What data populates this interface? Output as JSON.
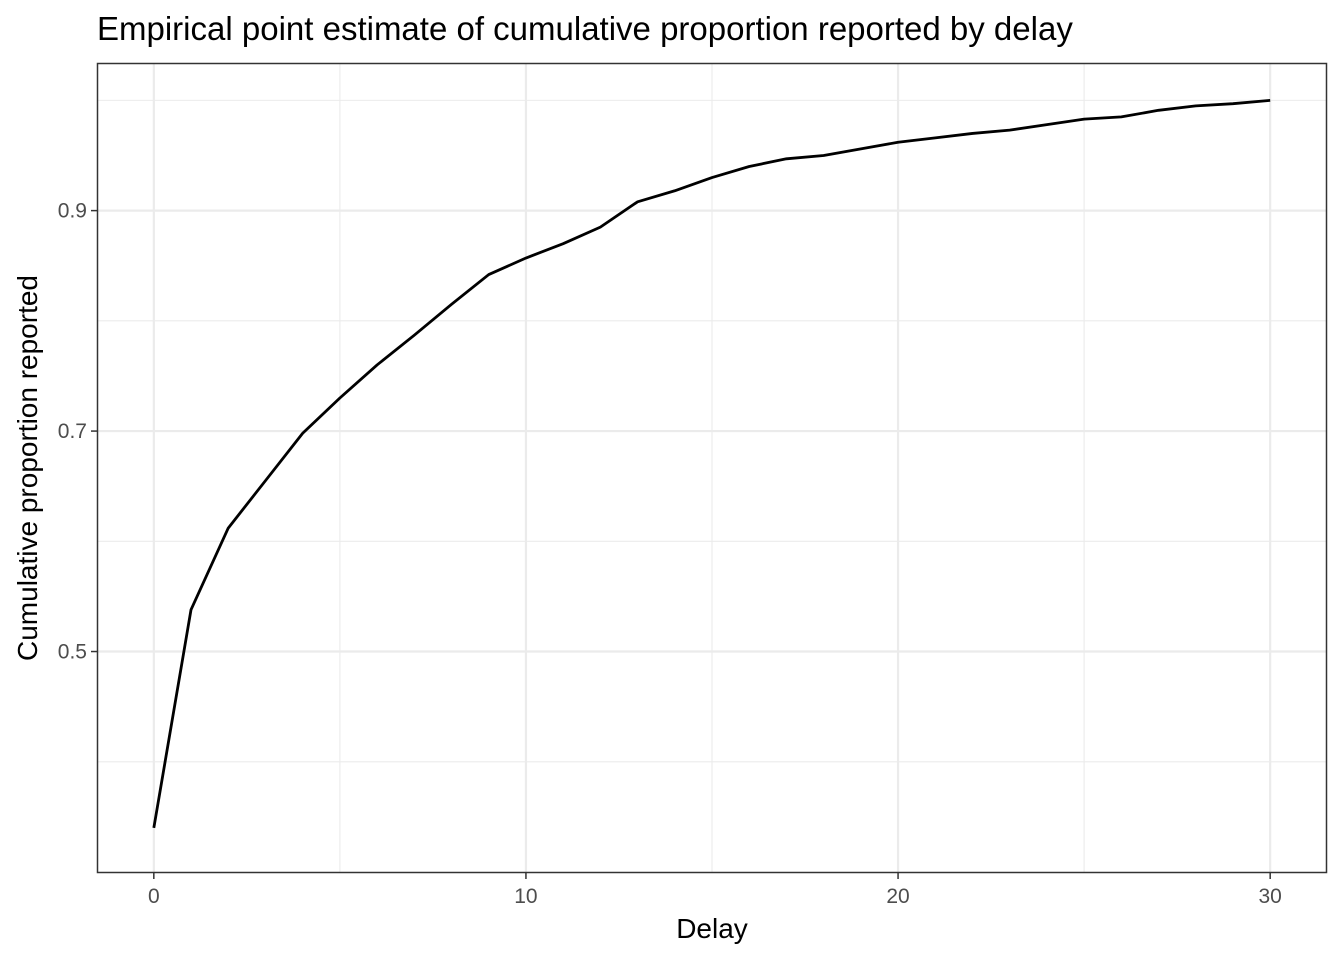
{
  "chart_data": {
    "type": "line",
    "title": "Empirical point estimate of cumulative proportion reported by delay",
    "xlabel": "Delay",
    "ylabel": "Cumulative proportion reported",
    "xlim": [
      -1.5,
      31.5
    ],
    "ylim": [
      0.3,
      1.033
    ],
    "x_ticks": [
      0,
      10,
      20,
      30
    ],
    "x_tick_labels": [
      "0",
      "10",
      "20",
      "30"
    ],
    "x_minor_ticks": [
      5,
      15,
      25
    ],
    "y_ticks": [
      0.5,
      0.7,
      0.9
    ],
    "y_tick_labels": [
      "0.5",
      "0.7",
      "0.9"
    ],
    "y_minor_ticks": [
      0.4,
      0.6,
      0.8,
      1.0
    ],
    "grid": true,
    "legend": "none",
    "line_color": "#000000",
    "series": [
      {
        "x": [
          0,
          1,
          2,
          3,
          4,
          5,
          6,
          7,
          8,
          9,
          10,
          11,
          12,
          13,
          14,
          15,
          16,
          17,
          18,
          19,
          20,
          21,
          22,
          23,
          24,
          25,
          26,
          27,
          28,
          29,
          30
        ],
        "values": [
          0.34,
          0.538,
          0.612,
          0.655,
          0.698,
          0.73,
          0.76,
          0.787,
          0.815,
          0.842,
          0.857,
          0.87,
          0.885,
          0.908,
          0.918,
          0.93,
          0.94,
          0.947,
          0.95,
          0.956,
          0.962,
          0.966,
          0.97,
          0.973,
          0.978,
          0.983,
          0.985,
          0.991,
          0.995,
          0.997,
          1.0
        ]
      }
    ]
  }
}
